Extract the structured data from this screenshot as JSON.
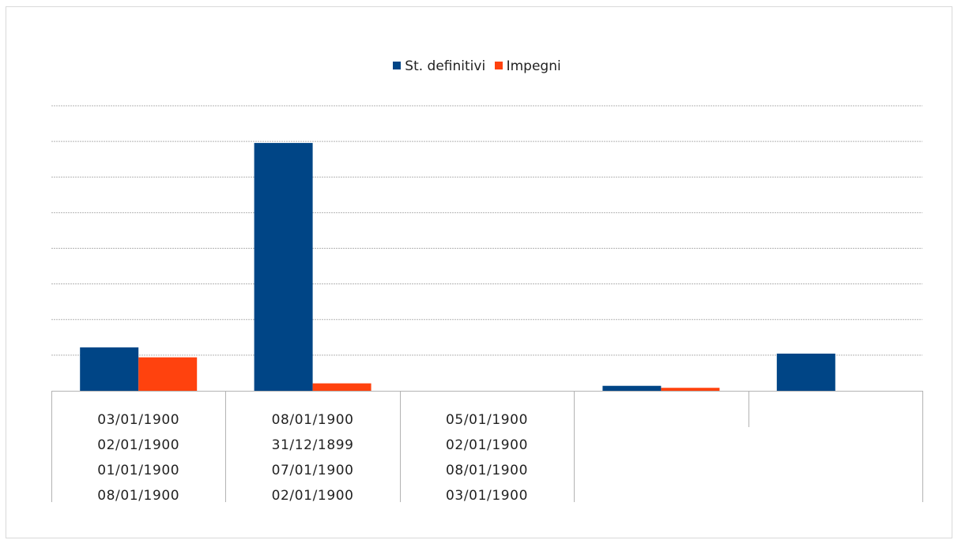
{
  "chart_data": {
    "type": "bar",
    "categories": [
      [
        "03/01/1900",
        "02/01/1900",
        "01/01/1900",
        "08/01/1900"
      ],
      [
        "08/01/1900",
        "31/12/1899",
        "07/01/1900",
        "02/01/1900"
      ],
      [
        "05/01/1900",
        "02/01/1900",
        "08/01/1900",
        "03/01/1900"
      ],
      [],
      []
    ],
    "series": [
      {
        "name": "St. definitivi",
        "color": "#004586",
        "values": [
          0.175,
          1.0,
          0,
          0.02,
          0.15
        ]
      },
      {
        "name": "Impegni",
        "color": "#ff420e",
        "values": [
          0.135,
          0.03,
          0,
          0.012,
          0
        ]
      }
    ],
    "ylim": [
      0,
      1.15
    ],
    "grid": true,
    "legend": "top-center"
  }
}
